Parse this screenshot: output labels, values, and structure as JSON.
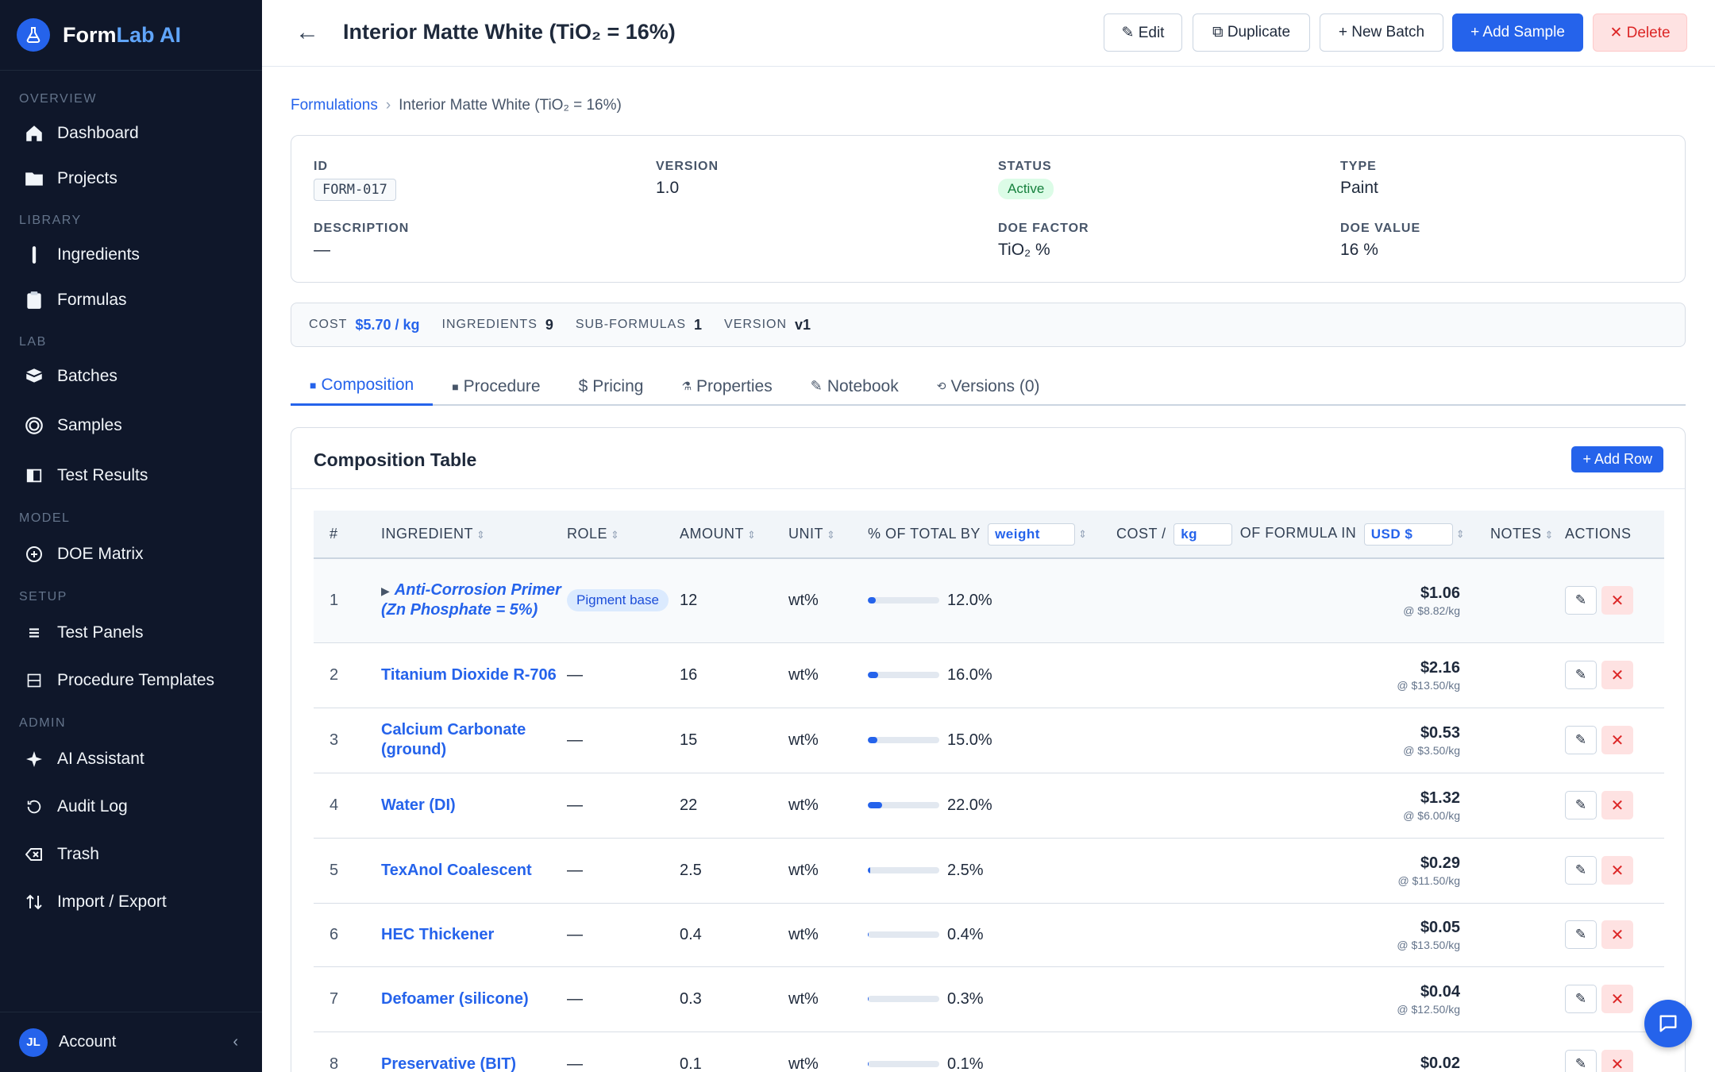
{
  "app": {
    "name_part1": "Form",
    "name_part2": "Lab AI",
    "accent": "#2563eb"
  },
  "sidebar": {
    "sections": {
      "overview": "OVERVIEW",
      "library": "LIBRARY",
      "lab": "LAB",
      "model": "MODEL",
      "setup": "SETUP",
      "admin": "ADMIN"
    },
    "items": [
      {
        "label": "Dashboard",
        "icon": "home-icon"
      },
      {
        "label": "Projects",
        "icon": "folder-icon"
      },
      {
        "label": "Ingredients",
        "icon": "test-tube-icon"
      },
      {
        "label": "Formulas",
        "icon": "clipboard-icon"
      },
      {
        "label": "Batches",
        "icon": "boxes-icon"
      },
      {
        "label": "Samples",
        "icon": "target-icon"
      },
      {
        "label": "Test Results",
        "icon": "panel-icon"
      },
      {
        "label": "DOE Matrix",
        "icon": "plus-circle-icon"
      },
      {
        "label": "Test Panels",
        "icon": "list-icon"
      },
      {
        "label": "Procedure Templates",
        "icon": "template-icon"
      },
      {
        "label": "AI Assistant",
        "icon": "sparkle-icon"
      },
      {
        "label": "Audit Log",
        "icon": "history-icon"
      },
      {
        "label": "Trash",
        "icon": "trash-icon"
      },
      {
        "label": "Import / Export",
        "icon": "arrows-updown-icon"
      }
    ],
    "account": {
      "initials": "JL",
      "label": "Account",
      "collapse": "‹"
    }
  },
  "header": {
    "back": "←",
    "title": "Interior Matte White (TiO₂ = 16%)",
    "buttons": {
      "edit": "✎ Edit",
      "duplicate": "⧉ Duplicate",
      "new_batch": "+ New Batch",
      "add_sample": "+ Add Sample",
      "delete": "✕ Delete"
    }
  },
  "breadcrumb": {
    "root": "Formulations",
    "sep": "›",
    "current": "Interior Matte White (TiO₂ = 16%)"
  },
  "info": {
    "id_label": "ID",
    "id_value": "FORM-017",
    "version_label": "VERSION",
    "version_value": "1.0",
    "status_label": "STATUS",
    "status_value": "Active",
    "type_label": "TYPE",
    "type_value": "Paint",
    "description_label": "DESCRIPTION",
    "description_value": "—",
    "doe_factor_label": "DOE FACTOR",
    "doe_factor_value": "TiO₂ %",
    "doe_value_label": "DOE VALUE",
    "doe_value_value": "16 %"
  },
  "summary": {
    "cost_label": "COST",
    "cost_value": "$5.70 / kg",
    "ingredients_label": "INGREDIENTS",
    "ingredients_value": "9",
    "subformulas_label": "SUB-FORMULAS",
    "subformulas_value": "1",
    "version_label": "VERSION",
    "version_value": "v1"
  },
  "tabs": [
    {
      "icon": "■",
      "label": "Composition",
      "active": true
    },
    {
      "icon": "■",
      "label": "Procedure"
    },
    {
      "icon": "$",
      "label": "Pricing"
    },
    {
      "icon": "⚗",
      "label": "Properties"
    },
    {
      "icon": "✎",
      "label": "Notebook"
    },
    {
      "icon": "⟲",
      "label": "Versions (0)"
    }
  ],
  "composition": {
    "title": "Composition Table",
    "add_row": "+ Add Row",
    "headers": {
      "num": "#",
      "ingredient": "INGREDIENT",
      "role": "ROLE",
      "amount": "AMOUNT",
      "unit": "UNIT",
      "pct_prefix": "% OF TOTAL BY",
      "pct_select": "weight",
      "cost_prefix": "COST /",
      "cost_unit_select": "kg",
      "cost_mid": "OF FORMULA IN",
      "currency_select": "USD $",
      "notes": "NOTES",
      "actions": "ACTIONS",
      "sort": "⇕"
    },
    "rows": [
      {
        "num": "1",
        "name": "Anti-Corrosion Primer (Zn Phosphate = 5%)",
        "sub": true,
        "expand": "▶",
        "role": "Pigment base",
        "amount": "12",
        "unit": "wt%",
        "pct": 12.0,
        "pct_label": "12.0%",
        "cost": "$1.06",
        "cost_per": "@ $8.82/kg"
      },
      {
        "num": "2",
        "name": "Titanium Dioxide R-706",
        "role": "—",
        "amount": "16",
        "unit": "wt%",
        "pct": 16.0,
        "pct_label": "16.0%",
        "cost": "$2.16",
        "cost_per": "@ $13.50/kg"
      },
      {
        "num": "3",
        "name": "Calcium Carbonate (ground)",
        "role": "—",
        "amount": "15",
        "unit": "wt%",
        "pct": 15.0,
        "pct_label": "15.0%",
        "cost": "$0.53",
        "cost_per": "@ $3.50/kg"
      },
      {
        "num": "4",
        "name": "Water (DI)",
        "role": "—",
        "amount": "22",
        "unit": "wt%",
        "pct": 22.0,
        "pct_label": "22.0%",
        "cost": "$1.32",
        "cost_per": "@ $6.00/kg"
      },
      {
        "num": "5",
        "name": "TexAnol Coalescent",
        "role": "—",
        "amount": "2.5",
        "unit": "wt%",
        "pct": 2.5,
        "pct_label": "2.5%",
        "cost": "$0.29",
        "cost_per": "@ $11.50/kg"
      },
      {
        "num": "6",
        "name": "HEC Thickener",
        "role": "—",
        "amount": "0.4",
        "unit": "wt%",
        "pct": 0.4,
        "pct_label": "0.4%",
        "cost": "$0.05",
        "cost_per": "@ $13.50/kg"
      },
      {
        "num": "7",
        "name": "Defoamer (silicone)",
        "role": "—",
        "amount": "0.3",
        "unit": "wt%",
        "pct": 0.3,
        "pct_label": "0.3%",
        "cost": "$0.04",
        "cost_per": "@ $12.50/kg"
      },
      {
        "num": "8",
        "name": "Preservative (BIT)",
        "role": "—",
        "amount": "0.1",
        "unit": "wt%",
        "pct": 0.1,
        "pct_label": "0.1%",
        "cost": "$0.02",
        "cost_per": ""
      }
    ],
    "action_edit": "✎",
    "action_delete": "✕"
  }
}
